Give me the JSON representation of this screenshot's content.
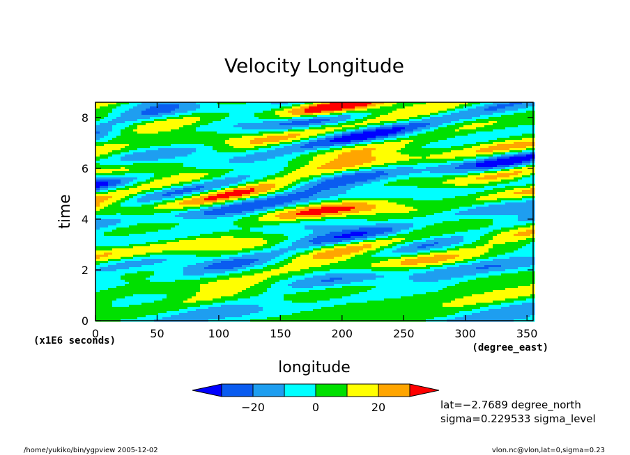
{
  "chart_data": {
    "type": "heatmap",
    "title": "Velocity Longitude",
    "xlabel": "longitude",
    "ylabel": "time",
    "x_unit": "(degree_east)",
    "y_unit": "(x1E6 seconds)",
    "xlim": [
      0,
      355
    ],
    "ylim": [
      0,
      8.6
    ],
    "x_ticks": [
      "0",
      "50",
      "100",
      "150",
      "200",
      "250",
      "300",
      "350"
    ],
    "y_ticks": [
      "0",
      "2",
      "4",
      "6",
      "8"
    ],
    "colorbar": {
      "bounds": [
        -30,
        -20,
        -10,
        0,
        10,
        20,
        30
      ],
      "colors": [
        "#0000ff",
        "#0a5cf0",
        "#1e9ef0",
        "#00ffff",
        "#00e000",
        "#ffff00",
        "#ffa500",
        "#ff0000"
      ],
      "tick_labels": [
        "−20",
        "0",
        "20"
      ],
      "tick_values": [
        -20,
        0,
        20
      ]
    },
    "info": [
      "lat=−2.7689 degree_north",
      "sigma=0.229533 sigma_level"
    ]
  },
  "footer": {
    "left": "/home/yukiko/bin/ygpview  2005-12-02",
    "right": "vlon.nc@vlon,lat=0,sigma=0.23"
  }
}
